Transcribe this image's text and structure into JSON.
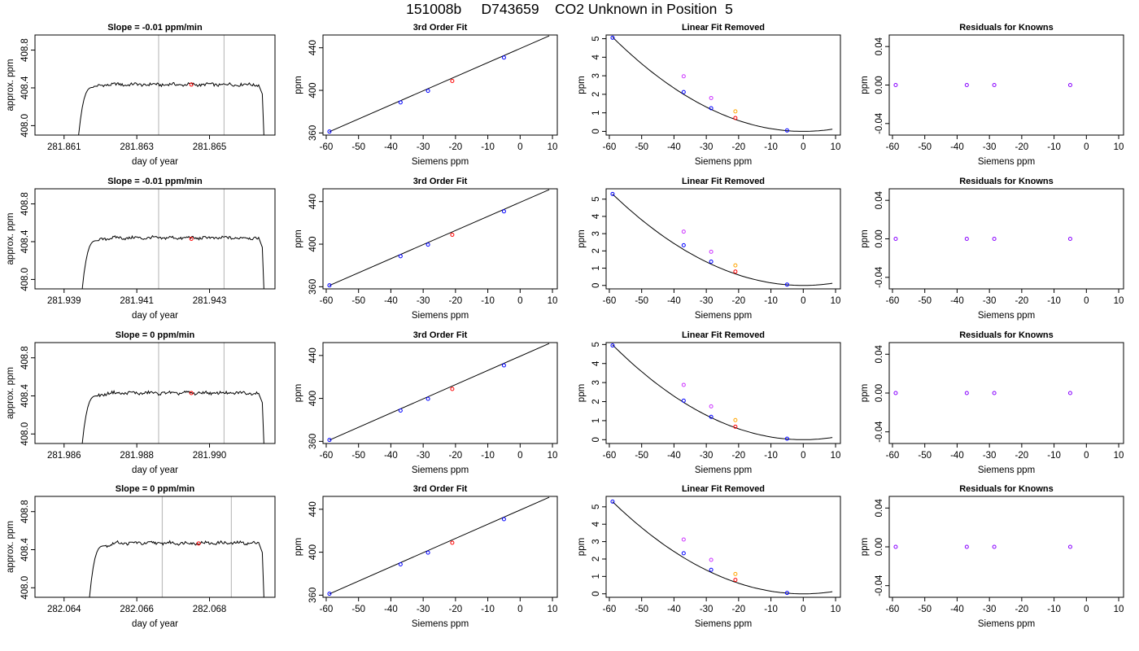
{
  "figure": {
    "title": "151008b     D743659    CO2 Unknown in Position  5"
  },
  "colors": {
    "known": "#0000ff",
    "unknown": "#ff0000",
    "raw_known": "#cc33ff",
    "raw_unknown": "#ffa500",
    "residual": "#8800ff",
    "cursor": "#bebebe",
    "line": "#000000"
  },
  "chart_data": [
    {
      "type": "line",
      "row": 0,
      "panel": "timeseries",
      "title": "Slope =  -0.01  ppm/min",
      "xlabel": "day of year",
      "ylabel": "approx. ppm",
      "xlim": [
        281.8602,
        281.8668
      ],
      "ylim": [
        407.9,
        408.96
      ],
      "xticks": [
        281.861,
        281.863,
        281.865
      ],
      "xtick_labels": [
        "281.861",
        "281.863",
        "281.865"
      ],
      "yticks": [
        408.0,
        408.4,
        408.8
      ],
      "ytick_labels": [
        "408.0",
        "408.4",
        "408.8"
      ],
      "trace": {
        "t_start": 281.8614,
        "t_rise": 281.8618,
        "t_end": 281.8665,
        "plateau": 408.435,
        "baseline": 407.9
      },
      "vlines": [
        281.8636,
        281.8654
      ],
      "marker": {
        "x": 281.8645,
        "y": 408.435
      }
    },
    {
      "type": "line",
      "row": 1,
      "panel": "timeseries",
      "title": "Slope =  -0.01  ppm/min",
      "xlabel": "day of year",
      "ylabel": "approx. ppm",
      "xlim": [
        281.9382,
        281.9448
      ],
      "ylim": [
        407.9,
        408.96
      ],
      "xticks": [
        281.939,
        281.941,
        281.943
      ],
      "xtick_labels": [
        "281.939",
        "281.941",
        "281.943"
      ],
      "yticks": [
        408.0,
        408.4,
        408.8
      ],
      "ytick_labels": [
        "408.0",
        "408.4",
        "408.8"
      ],
      "trace": {
        "t_start": 281.9395,
        "t_rise": 281.9399,
        "t_end": 281.9445,
        "plateau": 408.44,
        "baseline": 407.9
      },
      "vlines": [
        281.9416,
        281.9434
      ],
      "marker": {
        "x": 281.9425,
        "y": 408.43
      }
    },
    {
      "type": "line",
      "row": 2,
      "panel": "timeseries",
      "title": "Slope =  0  ppm/min",
      "xlabel": "day of year",
      "ylabel": "approx. ppm",
      "xlim": [
        281.9852,
        281.9918
      ],
      "ylim": [
        407.9,
        408.96
      ],
      "xticks": [
        281.986,
        281.988,
        281.99
      ],
      "xtick_labels": [
        "281.986",
        "281.988",
        "281.990"
      ],
      "yticks": [
        408.0,
        408.4,
        408.8
      ],
      "ytick_labels": [
        "408.0",
        "408.4",
        "408.8"
      ],
      "trace": {
        "t_start": 281.9865,
        "t_rise": 281.9869,
        "t_end": 281.9915,
        "plateau": 408.43,
        "baseline": 407.9
      },
      "vlines": [
        281.9886,
        281.9904
      ],
      "marker": {
        "x": 281.9895,
        "y": 408.43
      }
    },
    {
      "type": "line",
      "row": 3,
      "panel": "timeseries",
      "title": "Slope =  0  ppm/min",
      "xlabel": "day of year",
      "ylabel": "approx. ppm",
      "xlim": [
        282.0632,
        282.0698
      ],
      "ylim": [
        407.9,
        408.96
      ],
      "xticks": [
        282.064,
        282.066,
        282.068
      ],
      "xtick_labels": [
        "282.064",
        "282.066",
        "282.068"
      ],
      "yticks": [
        408.0,
        408.4,
        408.8
      ],
      "ytick_labels": [
        "408.0",
        "408.4",
        "408.8"
      ],
      "trace": {
        "t_start": 282.0647,
        "t_rise": 282.0651,
        "t_end": 282.0695,
        "plateau": 408.47,
        "baseline": 407.9
      },
      "vlines": [
        282.0667,
        282.0686
      ],
      "marker": {
        "x": 282.0677,
        "y": 408.465
      }
    },
    {
      "type": "scatter",
      "row": 0,
      "panel": "fit",
      "title": "3rd Order Fit",
      "xlabel": "Siemens ppm",
      "ylabel": "ppm",
      "xlim": [
        -61,
        11.5
      ],
      "ylim": [
        358,
        452
      ],
      "xticks": [
        -60,
        -50,
        -40,
        -30,
        -20,
        -10,
        0,
        10
      ],
      "xtick_labels": [
        "-60",
        "-50",
        "-40",
        "-30",
        "-20",
        "-10",
        "0",
        "10"
      ],
      "yticks": [
        360,
        400,
        440
      ],
      "ytick_labels": [
        "360",
        "400",
        "440"
      ],
      "fit_line": {
        "x0": -59,
        "y0": 361.2,
        "x1": 9,
        "y1": 451.2
      },
      "known": {
        "x": [
          -59,
          -37,
          -28.5,
          -5
        ],
        "y": [
          361.3,
          388.7,
          399.6,
          430.8
        ]
      },
      "unknown": {
        "x": [
          -21
        ],
        "y": [
          408.8
        ]
      }
    },
    {
      "type": "scatter",
      "row": 1,
      "panel": "fit",
      "title": "3rd Order Fit",
      "xlabel": "Siemens ppm",
      "ylabel": "ppm",
      "xlim": [
        -61,
        11.5
      ],
      "ylim": [
        358,
        452
      ],
      "xticks": [
        -60,
        -50,
        -40,
        -30,
        -20,
        -10,
        0,
        10
      ],
      "xtick_labels": [
        "-60",
        "-50",
        "-40",
        "-30",
        "-20",
        "-10",
        "0",
        "10"
      ],
      "yticks": [
        360,
        400,
        440
      ],
      "ytick_labels": [
        "360",
        "400",
        "440"
      ],
      "fit_line": {
        "x0": -59,
        "y0": 361.2,
        "x1": 9,
        "y1": 451.2
      },
      "known": {
        "x": [
          -59,
          -37,
          -28.5,
          -5
        ],
        "y": [
          361.3,
          388.7,
          399.6,
          430.8
        ]
      },
      "unknown": {
        "x": [
          -21
        ],
        "y": [
          408.8
        ]
      }
    },
    {
      "type": "scatter",
      "row": 2,
      "panel": "fit",
      "title": "3rd Order Fit",
      "xlabel": "Siemens ppm",
      "ylabel": "ppm",
      "xlim": [
        -61,
        11.5
      ],
      "ylim": [
        358,
        452
      ],
      "xticks": [
        -60,
        -50,
        -40,
        -30,
        -20,
        -10,
        0,
        10
      ],
      "xtick_labels": [
        "-60",
        "-50",
        "-40",
        "-30",
        "-20",
        "-10",
        "0",
        "10"
      ],
      "yticks": [
        360,
        400,
        440
      ],
      "ytick_labels": [
        "360",
        "400",
        "440"
      ],
      "fit_line": {
        "x0": -59,
        "y0": 361.2,
        "x1": 9,
        "y1": 451.2
      },
      "known": {
        "x": [
          -59,
          -37,
          -28.5,
          -5
        ],
        "y": [
          361.3,
          388.7,
          399.6,
          430.8
        ]
      },
      "unknown": {
        "x": [
          -21
        ],
        "y": [
          408.8
        ]
      }
    },
    {
      "type": "scatter",
      "row": 3,
      "panel": "fit",
      "title": "3rd Order Fit",
      "xlabel": "Siemens ppm",
      "ylabel": "ppm",
      "xlim": [
        -61,
        11.5
      ],
      "ylim": [
        358,
        452
      ],
      "xticks": [
        -60,
        -50,
        -40,
        -30,
        -20,
        -10,
        0,
        10
      ],
      "xtick_labels": [
        "-60",
        "-50",
        "-40",
        "-30",
        "-20",
        "-10",
        "0",
        "10"
      ],
      "yticks": [
        360,
        400,
        440
      ],
      "ytick_labels": [
        "360",
        "400",
        "440"
      ],
      "fit_line": {
        "x0": -59,
        "y0": 361.2,
        "x1": 9,
        "y1": 451.2
      },
      "known": {
        "x": [
          -59,
          -37,
          -28.5,
          -5
        ],
        "y": [
          361.3,
          388.7,
          399.6,
          430.8
        ]
      },
      "unknown": {
        "x": [
          -21
        ],
        "y": [
          408.8
        ]
      }
    },
    {
      "type": "scatter",
      "row": 0,
      "panel": "linear_removed",
      "title": "Linear Fit Removed",
      "xlabel": "Siemens ppm",
      "ylabel": "ppm",
      "xlim": [
        -61,
        11.5
      ],
      "ylim": [
        -0.2,
        5.2
      ],
      "xticks": [
        -60,
        -50,
        -40,
        -30,
        -20,
        -10,
        0,
        10
      ],
      "xtick_labels": [
        "-60",
        "-50",
        "-40",
        "-30",
        "-20",
        "-10",
        "0",
        "10"
      ],
      "yticks": [
        0,
        1,
        2,
        3,
        4,
        5
      ],
      "ytick_labels": [
        "0",
        "1",
        "2",
        "3",
        "4",
        "5"
      ],
      "curve": {
        "vertex_x": 0,
        "a": 0.00146,
        "x_from": -59,
        "x_to": 9
      },
      "known": {
        "x": [
          -59,
          -37,
          -28.5,
          -5
        ],
        "y": [
          5.05,
          2.12,
          1.25,
          0.05
        ]
      },
      "unknown": {
        "x": [
          -21
        ],
        "y": [
          0.72
        ]
      },
      "raw_known": {
        "x": [
          -37,
          -28.5
        ],
        "y": [
          2.97,
          1.8
        ]
      },
      "raw_unknown": {
        "x": [
          -21
        ],
        "y": [
          1.08
        ]
      }
    },
    {
      "type": "scatter",
      "row": 1,
      "panel": "linear_removed",
      "title": "Linear Fit Removed",
      "xlabel": "Siemens ppm",
      "ylabel": "ppm",
      "xlim": [
        -61,
        11.5
      ],
      "ylim": [
        -0.2,
        5.6
      ],
      "xticks": [
        -60,
        -50,
        -40,
        -30,
        -20,
        -10,
        0,
        10
      ],
      "xtick_labels": [
        "-60",
        "-50",
        "-40",
        "-30",
        "-20",
        "-10",
        "0",
        "10"
      ],
      "yticks": [
        0,
        1,
        2,
        3,
        4,
        5
      ],
      "ytick_labels": [
        "0",
        "1",
        "2",
        "3",
        "4",
        "5"
      ],
      "curve": {
        "vertex_x": 0,
        "a": 0.00152,
        "x_from": -59,
        "x_to": 9
      },
      "known": {
        "x": [
          -59,
          -37,
          -28.5,
          -5
        ],
        "y": [
          5.3,
          2.33,
          1.38,
          0.05
        ]
      },
      "unknown": {
        "x": [
          -21
        ],
        "y": [
          0.8
        ]
      },
      "raw_known": {
        "x": [
          -37,
          -28.5
        ],
        "y": [
          3.12,
          1.95
        ]
      },
      "raw_unknown": {
        "x": [
          -21
        ],
        "y": [
          1.16
        ]
      }
    },
    {
      "type": "scatter",
      "row": 2,
      "panel": "linear_removed",
      "title": "Linear Fit Removed",
      "xlabel": "Siemens ppm",
      "ylabel": "ppm",
      "xlim": [
        -61,
        11.5
      ],
      "ylim": [
        -0.2,
        5.1
      ],
      "xticks": [
        -60,
        -50,
        -40,
        -30,
        -20,
        -10,
        0,
        10
      ],
      "xtick_labels": [
        "-60",
        "-50",
        "-40",
        "-30",
        "-20",
        "-10",
        "0",
        "10"
      ],
      "yticks": [
        0,
        1,
        2,
        3,
        4,
        5
      ],
      "ytick_labels": [
        "0",
        "1",
        "2",
        "3",
        "4",
        "5"
      ],
      "curve": {
        "vertex_x": 0,
        "a": 0.00143,
        "x_from": -59,
        "x_to": 9
      },
      "known": {
        "x": [
          -59,
          -37,
          -28.5,
          -5
        ],
        "y": [
          4.95,
          2.05,
          1.2,
          0.05
        ]
      },
      "unknown": {
        "x": [
          -21
        ],
        "y": [
          0.68
        ]
      },
      "raw_known": {
        "x": [
          -37,
          -28.5
        ],
        "y": [
          2.88,
          1.75
        ]
      },
      "raw_unknown": {
        "x": [
          -21
        ],
        "y": [
          1.03
        ]
      }
    },
    {
      "type": "scatter",
      "row": 3,
      "panel": "linear_removed",
      "title": "Linear Fit Removed",
      "xlabel": "Siemens ppm",
      "ylabel": "ppm",
      "xlim": [
        -61,
        11.5
      ],
      "ylim": [
        -0.2,
        5.6
      ],
      "xticks": [
        -60,
        -50,
        -40,
        -30,
        -20,
        -10,
        0,
        10
      ],
      "xtick_labels": [
        "-60",
        "-50",
        "-40",
        "-30",
        "-20",
        "-10",
        "0",
        "10"
      ],
      "yticks": [
        0,
        1,
        2,
        3,
        4,
        5
      ],
      "ytick_labels": [
        "0",
        "1",
        "2",
        "3",
        "4",
        "5"
      ],
      "curve": {
        "vertex_x": 0,
        "a": 0.00152,
        "x_from": -59,
        "x_to": 9
      },
      "known": {
        "x": [
          -59,
          -37,
          -28.5,
          -5
        ],
        "y": [
          5.3,
          2.33,
          1.38,
          0.05
        ]
      },
      "unknown": {
        "x": [
          -21
        ],
        "y": [
          0.8
        ]
      },
      "raw_known": {
        "x": [
          -37,
          -28.5
        ],
        "y": [
          3.12,
          1.95
        ]
      },
      "raw_unknown": {
        "x": [
          -21
        ],
        "y": [
          1.14
        ]
      }
    },
    {
      "type": "scatter",
      "row": 0,
      "panel": "residuals",
      "title": "Residuals for Knowns",
      "xlabel": "Siemens ppm",
      "ylabel": "ppm",
      "xlim": [
        -61,
        11.5
      ],
      "ylim": [
        -0.052,
        0.052
      ],
      "xticks": [
        -60,
        -50,
        -40,
        -30,
        -20,
        -10,
        0,
        10
      ],
      "xtick_labels": [
        "-60",
        "-50",
        "-40",
        "-30",
        "-20",
        "-10",
        "0",
        "10"
      ],
      "yticks": [
        -0.04,
        0.0,
        0.04
      ],
      "ytick_labels": [
        "-0.04",
        "0.00",
        "0.04"
      ],
      "residuals": {
        "x": [
          -59,
          -37,
          -28.5,
          -5
        ],
        "y": [
          0,
          0,
          0,
          0
        ]
      }
    },
    {
      "type": "scatter",
      "row": 1,
      "panel": "residuals",
      "title": "Residuals for Knowns",
      "xlabel": "Siemens ppm",
      "ylabel": "ppm",
      "xlim": [
        -61,
        11.5
      ],
      "ylim": [
        -0.052,
        0.052
      ],
      "xticks": [
        -60,
        -50,
        -40,
        -30,
        -20,
        -10,
        0,
        10
      ],
      "xtick_labels": [
        "-60",
        "-50",
        "-40",
        "-30",
        "-20",
        "-10",
        "0",
        "10"
      ],
      "yticks": [
        -0.04,
        0.0,
        0.04
      ],
      "ytick_labels": [
        "-0.04",
        "0.00",
        "0.04"
      ],
      "residuals": {
        "x": [
          -59,
          -37,
          -28.5,
          -5
        ],
        "y": [
          0,
          0,
          0,
          0
        ]
      }
    },
    {
      "type": "scatter",
      "row": 2,
      "panel": "residuals",
      "title": "Residuals for Knowns",
      "xlabel": "Siemens ppm",
      "ylabel": "ppm",
      "xlim": [
        -61,
        11.5
      ],
      "ylim": [
        -0.052,
        0.052
      ],
      "xticks": [
        -60,
        -50,
        -40,
        -30,
        -20,
        -10,
        0,
        10
      ],
      "xtick_labels": [
        "-60",
        "-50",
        "-40",
        "-30",
        "-20",
        "-10",
        "0",
        "10"
      ],
      "yticks": [
        -0.04,
        0.0,
        0.04
      ],
      "ytick_labels": [
        "-0.04",
        "0.00",
        "0.04"
      ],
      "residuals": {
        "x": [
          -59,
          -37,
          -28.5,
          -5
        ],
        "y": [
          0,
          0,
          0,
          0
        ]
      }
    },
    {
      "type": "scatter",
      "row": 3,
      "panel": "residuals",
      "title": "Residuals for Knowns",
      "xlabel": "Siemens ppm",
      "ylabel": "ppm",
      "xlim": [
        -61,
        11.5
      ],
      "ylim": [
        -0.052,
        0.052
      ],
      "xticks": [
        -60,
        -50,
        -40,
        -30,
        -20,
        -10,
        0,
        10
      ],
      "xtick_labels": [
        "-60",
        "-50",
        "-40",
        "-30",
        "-20",
        "-10",
        "0",
        "10"
      ],
      "yticks": [
        -0.04,
        0.0,
        0.04
      ],
      "ytick_labels": [
        "-0.04",
        "0.00",
        "0.04"
      ],
      "residuals": {
        "x": [
          -59,
          -37,
          -28.5,
          -5
        ],
        "y": [
          0,
          0,
          0,
          0
        ]
      }
    }
  ]
}
